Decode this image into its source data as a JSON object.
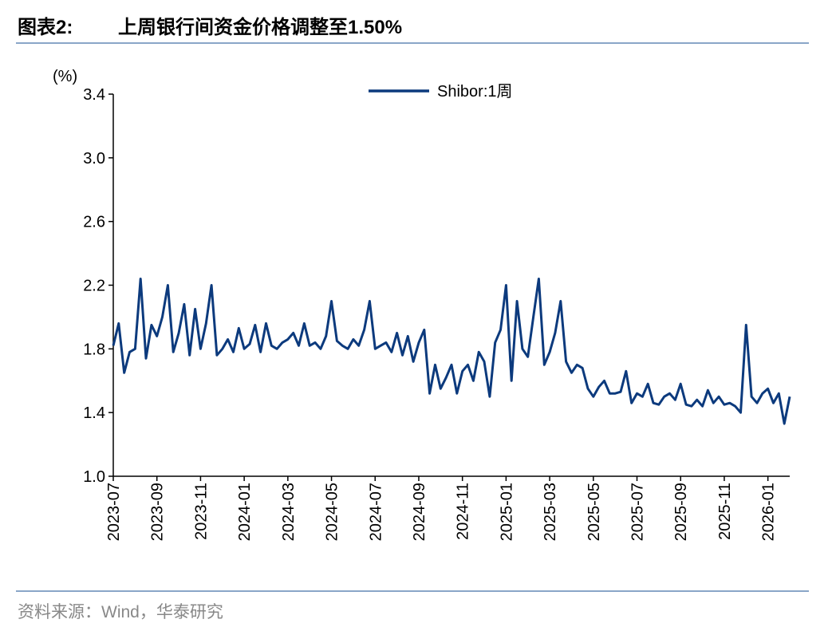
{
  "chart_data": {
    "type": "line",
    "figure_label": "图表2:",
    "title": "上周银行间资金价格调整至1.50%",
    "y_label": "(%)",
    "source": "资料来源：Wind，华泰研究",
    "categories": [
      "2023-07",
      null,
      null,
      null,
      null,
      null,
      null,
      null,
      "2023-09",
      null,
      null,
      null,
      null,
      null,
      null,
      null,
      "2023-11",
      null,
      null,
      null,
      null,
      null,
      null,
      null,
      "2024-01",
      null,
      null,
      null,
      null,
      null,
      null,
      null,
      "2024-03",
      null,
      null,
      null,
      null,
      null,
      null,
      null,
      "2024-05",
      null,
      null,
      null,
      null,
      null,
      null,
      null,
      "2024-07",
      null,
      null,
      null,
      null,
      null,
      null,
      null,
      "2024-09",
      null,
      null,
      null,
      null,
      null,
      null,
      null,
      "2024-11",
      null,
      null,
      null,
      null,
      null,
      null,
      null,
      "2025-01",
      null,
      null,
      null,
      null,
      null,
      null,
      null,
      "2025-03",
      null,
      null,
      null,
      null,
      null,
      null,
      null,
      "2025-05",
      null,
      null,
      null,
      null,
      null,
      null,
      null,
      "2025-07",
      null,
      null,
      null,
      null,
      null,
      null,
      null,
      "2025-09",
      null,
      null,
      null,
      null,
      null,
      null,
      null,
      "2025-11",
      null,
      null,
      null,
      null,
      null,
      null,
      null,
      "2026-01",
      null,
      null,
      null,
      null
    ],
    "series": [
      {
        "name": "Shibor:1周",
        "color": "#0c3a7d",
        "values": [
          1.82,
          1.96,
          1.65,
          1.78,
          1.8,
          2.24,
          1.74,
          1.95,
          1.88,
          2.0,
          2.2,
          1.78,
          1.9,
          2.08,
          1.76,
          2.05,
          1.8,
          1.96,
          2.2,
          1.76,
          1.8,
          1.86,
          1.78,
          1.93,
          1.8,
          1.83,
          1.95,
          1.78,
          1.96,
          1.82,
          1.8,
          1.84,
          1.86,
          1.9,
          1.82,
          1.96,
          1.82,
          1.84,
          1.8,
          1.88,
          2.1,
          1.85,
          1.82,
          1.8,
          1.86,
          1.82,
          1.92,
          2.1,
          1.8,
          1.82,
          1.84,
          1.78,
          1.9,
          1.76,
          1.88,
          1.72,
          1.84,
          1.92,
          1.52,
          1.7,
          1.55,
          1.62,
          1.7,
          1.52,
          1.66,
          1.7,
          1.6,
          1.78,
          1.72,
          1.5,
          1.84,
          1.92,
          2.2,
          1.6,
          2.1,
          1.8,
          1.75,
          2.0,
          2.24,
          1.7,
          1.78,
          1.9,
          2.1,
          1.72,
          1.65,
          1.7,
          1.68,
          1.55,
          1.5,
          1.56,
          1.6,
          1.52,
          1.52,
          1.53,
          1.66,
          1.46,
          1.52,
          1.5,
          1.58,
          1.46,
          1.45,
          1.5,
          1.52,
          1.48,
          1.58,
          1.45,
          1.44,
          1.48,
          1.44,
          1.54,
          1.46,
          1.5,
          1.45,
          1.46,
          1.44,
          1.4,
          1.95,
          1.5,
          1.46,
          1.52,
          1.55,
          1.46,
          1.52,
          1.33,
          1.5
        ]
      }
    ],
    "ylim": [
      1,
      3.4
    ],
    "yticks": [
      {
        "value": 1,
        "label": "1.0"
      },
      1.4,
      1.8,
      2.2,
      2.6,
      {
        "value": 3,
        "label": "3.0"
      },
      3.4
    ],
    "grid": false,
    "legend": "top"
  }
}
